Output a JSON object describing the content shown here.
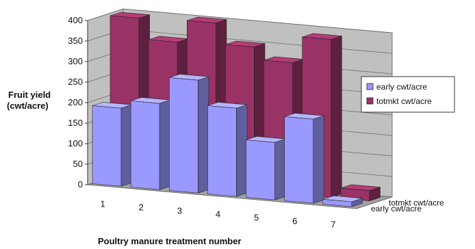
{
  "chart_data": {
    "type": "bar",
    "subtype": "3d-clustered-depth",
    "title": "",
    "ylabel": [
      "Fruit yield",
      "(cwt/acre)"
    ],
    "xlabel": "Poultry manure treatment number",
    "ylim": [
      0,
      400
    ],
    "yticks": [
      0,
      50,
      100,
      150,
      200,
      250,
      300,
      350,
      400
    ],
    "categories": [
      "1",
      "2",
      "3",
      "4",
      "5",
      "6",
      "7"
    ],
    "series": [
      {
        "name": "early cwt/acre",
        "values": [
          190,
          210,
          275,
          215,
          140,
          205,
          12
        ],
        "color": "#9999ff"
      },
      {
        "name": "totmkt cwt/acre",
        "values": [
          395,
          345,
          400,
          350,
          320,
          385,
          25
        ],
        "color": "#993366"
      }
    ],
    "legend_position": "right",
    "grid": true
  },
  "colors": {
    "background": "#ffffff",
    "wall": "#c0c0c0",
    "floor": "#a0a0a0",
    "gridline": "#666666"
  }
}
